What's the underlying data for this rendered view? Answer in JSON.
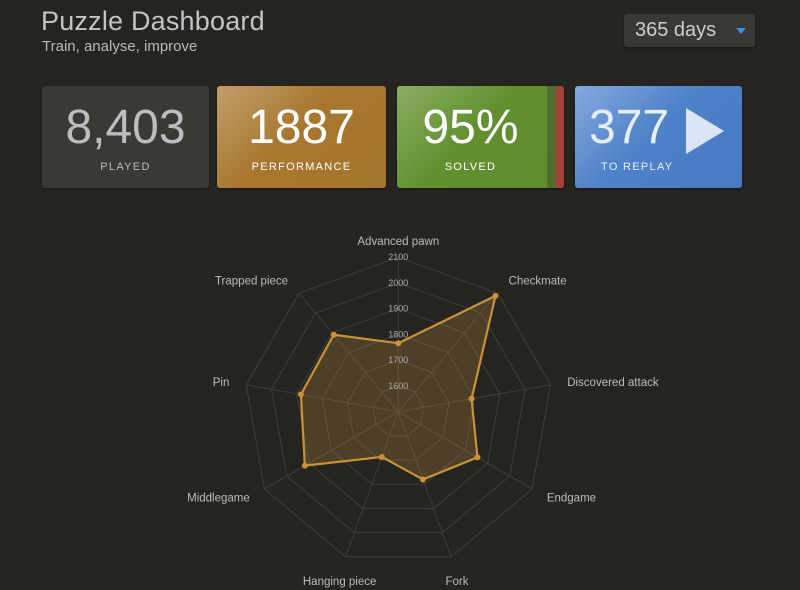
{
  "header": {
    "title": "Puzzle Dashboard",
    "subtitle": "Train, analyse, improve"
  },
  "period_select": {
    "value": "365 days",
    "icon": "caret-down-icon"
  },
  "cards": [
    {
      "value": "8,403",
      "label": "PLAYED",
      "color": "#3b3936"
    },
    {
      "value": "1887",
      "label": "PERFORMANCE",
      "color": "#a8772f"
    },
    {
      "value": "95%",
      "label": "SOLVED",
      "color": "#629030",
      "solved_fraction": 0.95,
      "failed_color": "#a6413a"
    },
    {
      "value": "377",
      "label": "TO REPLAY",
      "color": "#4a7ec5",
      "icon": "play-icon"
    }
  ],
  "chart_data": {
    "type": "radar",
    "categories": [
      "Advanced pawn",
      "Checkmate",
      "Discovered attack",
      "Endgame",
      "Fork",
      "Hanging piece",
      "Middlegame",
      "Pin",
      "Trapped piece"
    ],
    "values": [
      1766,
      2087,
      1789,
      1855,
      1780,
      1687,
      1919,
      1884,
      1890
    ],
    "rlim": [
      1500,
      2100
    ],
    "ticks": [
      "1600",
      "1700",
      "1800",
      "1900",
      "2000",
      "2100"
    ],
    "grid": true,
    "line_color": "#c9923a",
    "fill_color": "rgba(201,146,58,0.25)"
  }
}
